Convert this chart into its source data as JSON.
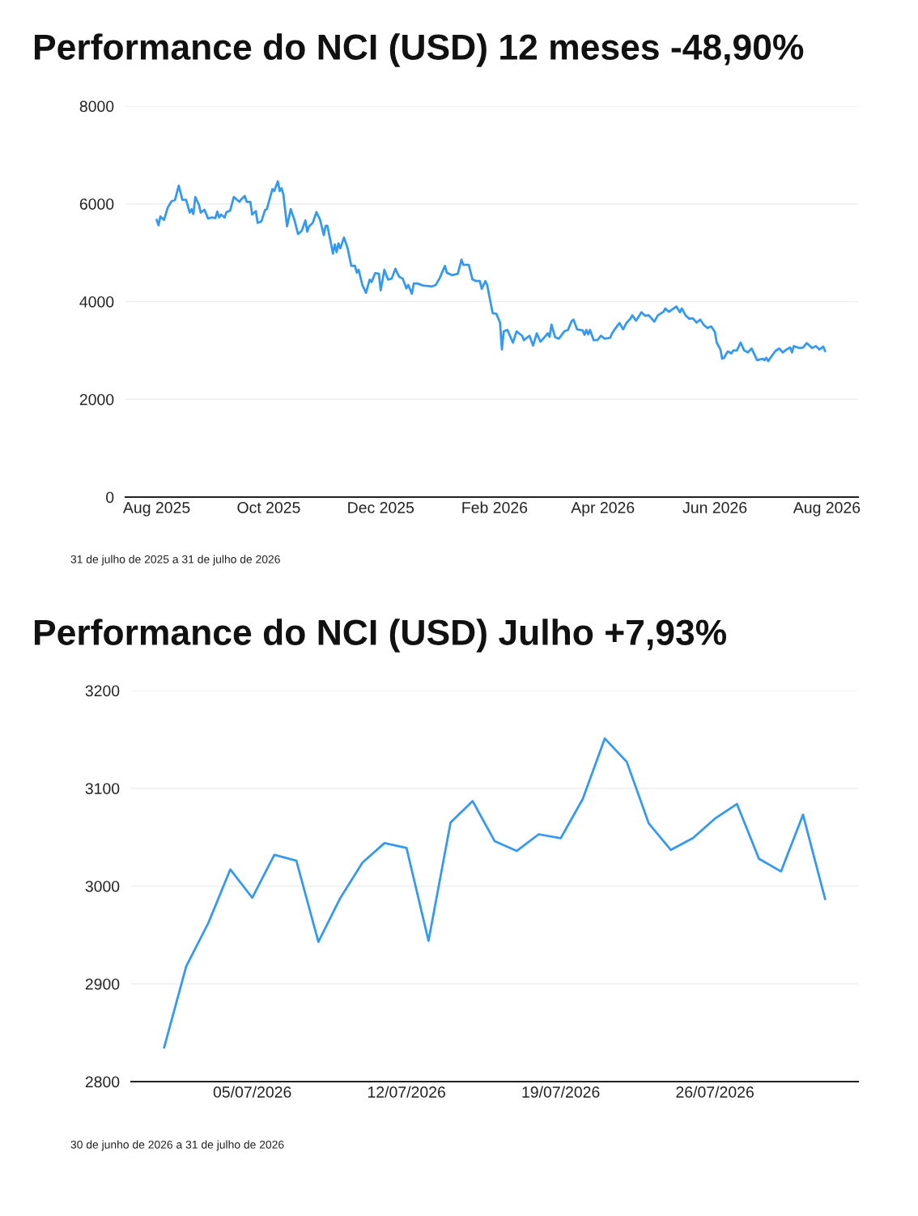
{
  "chart_data": [
    {
      "type": "line",
      "title": "Performance do NCI (USD) 12 meses -48,90%",
      "x": [
        "2025-08-01",
        "2025-08-02",
        "2025-08-03",
        "2025-08-05",
        "2025-08-07",
        "2025-08-09",
        "2025-08-11",
        "2025-08-13",
        "2025-08-15",
        "2025-08-17",
        "2025-08-19",
        "2025-08-20",
        "2025-08-21",
        "2025-08-22",
        "2025-08-24",
        "2025-08-25",
        "2025-08-27",
        "2025-08-29",
        "2025-08-31",
        "2025-09-02",
        "2025-09-03",
        "2025-09-04",
        "2025-09-05",
        "2025-09-07",
        "2025-09-08",
        "2025-09-10",
        "2025-09-12",
        "2025-09-15",
        "2025-09-16",
        "2025-09-18",
        "2025-09-19",
        "2025-09-21",
        "2025-09-22",
        "2025-09-24",
        "2025-09-25",
        "2025-09-27",
        "2025-09-29",
        "2025-09-30",
        "2025-10-03",
        "2025-10-04",
        "2025-10-06",
        "2025-10-07",
        "2025-10-08",
        "2025-10-09",
        "2025-10-11",
        "2025-10-13",
        "2025-10-15",
        "2025-10-17",
        "2025-10-19",
        "2025-10-21",
        "2025-10-22",
        "2025-10-23",
        "2025-10-25",
        "2025-10-27",
        "2025-10-29",
        "2025-10-31",
        "2025-11-01",
        "2025-11-02",
        "2025-11-05",
        "2025-11-06",
        "2025-11-07",
        "2025-11-08",
        "2025-11-09",
        "2025-11-11",
        "2025-11-13",
        "2025-11-15",
        "2025-11-17",
        "2025-11-18",
        "2025-11-19",
        "2025-11-21",
        "2025-11-23",
        "2025-11-25",
        "2025-11-26",
        "2025-11-28",
        "2025-11-30",
        "2025-12-01",
        "2025-12-03",
        "2025-12-05",
        "2025-12-07",
        "2025-12-09",
        "2025-12-11",
        "2025-12-13",
        "2025-12-15",
        "2025-12-16",
        "2025-12-18",
        "2025-12-19",
        "2025-12-21",
        "2025-12-24",
        "2025-12-29",
        "2025-12-31",
        "2026-01-02",
        "2026-01-05",
        "2026-01-06",
        "2026-01-09",
        "2026-01-12",
        "2026-01-14",
        "2026-01-15",
        "2026-01-18",
        "2026-01-20",
        "2026-01-22",
        "2026-01-24",
        "2026-01-25",
        "2026-01-27",
        "2026-01-28",
        "2026-01-29",
        "2026-01-31",
        "2026-02-02",
        "2026-02-04",
        "2026-02-05",
        "2026-02-06",
        "2026-02-08",
        "2026-02-11",
        "2026-02-13",
        "2026-02-16",
        "2026-02-17",
        "2026-02-20",
        "2026-02-22",
        "2026-02-24",
        "2026-02-26",
        "2026-02-27",
        "2026-03-02",
        "2026-03-03",
        "2026-03-04",
        "2026-03-06",
        "2026-03-08",
        "2026-03-11",
        "2026-03-13",
        "2026-03-15",
        "2026-03-16",
        "2026-03-18",
        "2026-03-21",
        "2026-03-22",
        "2026-03-23",
        "2026-03-24",
        "2026-03-25",
        "2026-03-27",
        "2026-03-29",
        "2026-03-31",
        "2026-04-02",
        "2026-04-05",
        "2026-04-06",
        "2026-04-08",
        "2026-04-10",
        "2026-04-12",
        "2026-04-14",
        "2026-04-16",
        "2026-04-17",
        "2026-04-19",
        "2026-04-20",
        "2026-04-22",
        "2026-04-24",
        "2026-04-26",
        "2026-04-29",
        "2026-05-01",
        "2026-05-04",
        "2026-05-05",
        "2026-05-07",
        "2026-05-11",
        "2026-05-13",
        "2026-05-14",
        "2026-05-16",
        "2026-05-18",
        "2026-05-20",
        "2026-05-22",
        "2026-05-24",
        "2026-05-26",
        "2026-05-28",
        "2026-05-30",
        "2026-06-01",
        "2026-06-02",
        "2026-06-04",
        "2026-06-05",
        "2026-06-06",
        "2026-06-08",
        "2026-06-10",
        "2026-06-11",
        "2026-06-13",
        "2026-06-15",
        "2026-06-17",
        "2026-06-19",
        "2026-06-21",
        "2026-06-24",
        "2026-06-27",
        "2026-06-28",
        "2026-06-29",
        "2026-06-30",
        "2026-07-03",
        "2026-07-04",
        "2026-07-06",
        "2026-07-08",
        "2026-07-10",
        "2026-07-12",
        "2026-07-13",
        "2026-07-14",
        "2026-07-17",
        "2026-07-19",
        "2026-07-21",
        "2026-07-24",
        "2026-07-26",
        "2026-07-28",
        "2026-07-30",
        "2026-07-31"
      ],
      "series": [
        {
          "color": "#3399f3",
          "values": [
            5670,
            5560,
            5740,
            5670,
            5920,
            6050,
            6080,
            6370,
            6080,
            6080,
            5820,
            5890,
            5790,
            6140,
            5980,
            5820,
            5880,
            5700,
            5720,
            5710,
            5840,
            5720,
            5780,
            5720,
            5830,
            5860,
            6140,
            6040,
            6090,
            6160,
            6040,
            6040,
            5780,
            5850,
            5610,
            5640,
            5870,
            5890,
            6300,
            6260,
            6460,
            6260,
            6320,
            6190,
            5540,
            5890,
            5670,
            5380,
            5450,
            5660,
            5430,
            5540,
            5610,
            5830,
            5670,
            5360,
            5550,
            5550,
            4980,
            5170,
            5010,
            5190,
            5090,
            5310,
            5090,
            4730,
            4730,
            4590,
            4650,
            4340,
            4180,
            4450,
            4400,
            4580,
            4570,
            4230,
            4650,
            4450,
            4470,
            4670,
            4510,
            4470,
            4270,
            4340,
            4160,
            4370,
            4370,
            4330,
            4310,
            4340,
            4470,
            4730,
            4590,
            4540,
            4570,
            4860,
            4750,
            4750,
            4450,
            4420,
            4420,
            4260,
            4420,
            4340,
            4140,
            3760,
            3750,
            3570,
            3020,
            3390,
            3420,
            3160,
            3390,
            3300,
            3210,
            3300,
            3100,
            3350,
            3180,
            3220,
            3350,
            3280,
            3530,
            3270,
            3240,
            3390,
            3420,
            3600,
            3630,
            3430,
            3410,
            3320,
            3420,
            3330,
            3420,
            3210,
            3210,
            3300,
            3240,
            3260,
            3350,
            3460,
            3560,
            3430,
            3570,
            3650,
            3720,
            3610,
            3660,
            3780,
            3710,
            3720,
            3590,
            3720,
            3790,
            3860,
            3790,
            3900,
            3780,
            3860,
            3720,
            3650,
            3660,
            3570,
            3630,
            3520,
            3460,
            3490,
            3380,
            3160,
            3020,
            2830,
            2850,
            2980,
            2940,
            3000,
            3000,
            3160,
            3000,
            2960,
            3040,
            2800,
            2830,
            2800,
            2850,
            2780,
            2940,
            2990,
            3040,
            2960,
            3020,
            3060,
            2960,
            3090,
            3050,
            3060,
            3150,
            3050,
            3090,
            3020,
            3080,
            2990
          ]
        }
      ],
      "xlim": [
        "2025-07-15",
        "2026-08-18"
      ],
      "xticks": [
        {
          "value": "2025-08-01",
          "label": "Aug 2025"
        },
        {
          "value": "2025-10-01",
          "label": "Oct 2025"
        },
        {
          "value": "2025-12-01",
          "label": "Dec 2025"
        },
        {
          "value": "2026-02-01",
          "label": "Feb 2026"
        },
        {
          "value": "2026-04-01",
          "label": "Apr 2026"
        },
        {
          "value": "2026-06-01",
          "label": "Jun 2026"
        },
        {
          "value": "2026-08-01",
          "label": "Aug 2026"
        }
      ],
      "ylim": [
        0,
        8000
      ],
      "yticks": [
        0,
        2000,
        4000,
        6000,
        8000
      ],
      "grid": "y",
      "legend": false,
      "marker": "none",
      "line_style": "solid",
      "annotations": [
        "31 de julho de 2025 a 31 de julho de 2026"
      ]
    },
    {
      "type": "line",
      "title": "Performance do NCI (USD) Julho +7,93%",
      "x": [
        "2026-07-01",
        "2026-07-02",
        "2026-07-03",
        "2026-07-04",
        "2026-07-05",
        "2026-07-06",
        "2026-07-07",
        "2026-07-08",
        "2026-07-09",
        "2026-07-10",
        "2026-07-11",
        "2026-07-12",
        "2026-07-13",
        "2026-07-14",
        "2026-07-15",
        "2026-07-16",
        "2026-07-17",
        "2026-07-18",
        "2026-07-19",
        "2026-07-20",
        "2026-07-21",
        "2026-07-22",
        "2026-07-23",
        "2026-07-24",
        "2026-07-25",
        "2026-07-26",
        "2026-07-27",
        "2026-07-28",
        "2026-07-29",
        "2026-07-30",
        "2026-07-31"
      ],
      "series": [
        {
          "color": "#3399f3",
          "values": [
            2835,
            2918,
            2962,
            3017,
            2988,
            3032,
            3026,
            2943,
            2988,
            3024,
            3044,
            3039,
            2944,
            3065,
            3087,
            3046,
            3036,
            3053,
            3049,
            3089,
            3151,
            3127,
            3064,
            3037,
            3049,
            3069,
            3084,
            3028,
            3015,
            3073,
            2987
          ]
        }
      ],
      "xlim": [
        "2026-06-29T12:00",
        "2026-08-01T12:00"
      ],
      "xticks": [
        {
          "value": "2026-07-05",
          "label": "05/07/2026"
        },
        {
          "value": "2026-07-12",
          "label": "12/07/2026"
        },
        {
          "value": "2026-07-19",
          "label": "19/07/2026"
        },
        {
          "value": "2026-07-26",
          "label": "26/07/2026"
        }
      ],
      "ylim": [
        2800,
        3200
      ],
      "yticks": [
        2800,
        2900,
        3000,
        3100,
        3200
      ],
      "grid": "y",
      "legend": false,
      "marker": "none",
      "line_style": "solid",
      "annotations": [
        "30 de junho de 2026 a 31 de julho de 2026"
      ]
    }
  ]
}
